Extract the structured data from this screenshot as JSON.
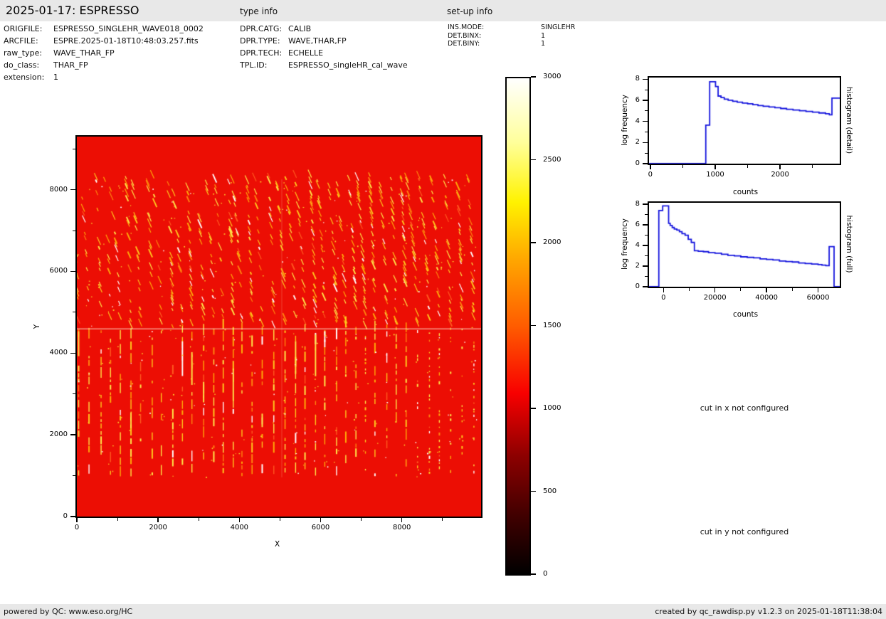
{
  "header": {
    "title": "2025-01-17: ESPRESSO",
    "type_info_label": "type info",
    "setup_info_label": "set-up info"
  },
  "file_info": {
    "rows": [
      {
        "label": "ORIGFILE:",
        "value": "ESPRESSO_SINGLEHR_WAVE018_0002"
      },
      {
        "label": "ARCFILE:",
        "value": "ESPRE.2025-01-18T10:48:03.257.fits"
      },
      {
        "label": "raw_type:",
        "value": "WAVE_THAR_FP"
      },
      {
        "label": "do_class:",
        "value": "THAR_FP"
      },
      {
        "label": "extension:",
        "value": "1"
      }
    ]
  },
  "type_info": {
    "rows": [
      {
        "label": "DPR.CATG:",
        "value": "CALIB"
      },
      {
        "label": "DPR.TYPE:",
        "value": "WAVE,THAR,FP"
      },
      {
        "label": "DPR.TECH:",
        "value": "ECHELLE"
      },
      {
        "label": "TPL.ID:",
        "value": "ESPRESSO_singleHR_cal_wave"
      }
    ]
  },
  "setup_info": {
    "rows": [
      {
        "label": "INS.MODE:",
        "value": "SINGLEHR"
      },
      {
        "label": "DET.BINX:",
        "value": "1"
      },
      {
        "label": "DET.BINY:",
        "value": "1"
      }
    ]
  },
  "notes": {
    "cut_x": "cut in x not configured",
    "cut_y": "cut in y not configured"
  },
  "footer": {
    "left": "powered by QC: www.eso.org/HC",
    "right": "created by qc_rawdisp.py v1.2.3 on 2025-01-18T11:38:04"
  },
  "chart_data": [
    {
      "name": "raw_image",
      "type": "heatmap",
      "title": "",
      "xlabel": "X",
      "ylabel": "Y",
      "xlim": [
        0,
        9950
      ],
      "ylim": [
        0,
        9300
      ],
      "xticks": [
        0,
        2000,
        4000,
        6000,
        8000
      ],
      "xticks_minor": [
        1000,
        3000,
        5000,
        7000,
        9000
      ],
      "yticks": [
        0,
        2000,
        4000,
        6000,
        8000
      ],
      "yticks_minor": [
        1000,
        3000,
        5000,
        7000,
        9000
      ],
      "colormap": "hot",
      "value_range": [
        0,
        3000
      ],
      "base_color": "#ec0e04",
      "description": "ESPRESSO raw WAVE,THAR,FP calibration frame: uniform red background near 1000 counts with ~40 curved vertical echelle-order stripes of bright yellow/white ThAr and FP emission features between Y~1000 and Y~8300; slanted dashed features in upper half, brighter continuous streaks in lower half; pale horizontal detector-gap line near Y~4650"
    },
    {
      "name": "colorbar",
      "type": "colorbar",
      "colormap": "hot",
      "vmin": 0,
      "vmax": 3000,
      "ticks": [
        0,
        500,
        1000,
        1500,
        2000,
        2500,
        3000
      ],
      "stops": [
        {
          "pos": 0.0,
          "color": "#000000"
        },
        {
          "pos": 0.12,
          "color": "#420000"
        },
        {
          "pos": 0.24,
          "color": "#8e0000"
        },
        {
          "pos": 0.365,
          "color": "#f80000"
        },
        {
          "pos": 0.5,
          "color": "#ff5c00"
        },
        {
          "pos": 0.635,
          "color": "#ffa700"
        },
        {
          "pos": 0.75,
          "color": "#fff200"
        },
        {
          "pos": 0.87,
          "color": "#ffff9a"
        },
        {
          "pos": 1.0,
          "color": "#ffffff"
        }
      ]
    },
    {
      "name": "histogram_detail",
      "type": "line",
      "title": "",
      "xlabel": "counts",
      "ylabel": "log frequency",
      "right_label": "histogram (detail)",
      "line_color": "#1515dd",
      "xlim": [
        -20,
        2920
      ],
      "ylim": [
        0,
        8.15
      ],
      "xticks": [
        0,
        1000,
        2000
      ],
      "xticks_minor": [
        500,
        1500,
        2500
      ],
      "yticks": [
        0,
        2,
        4,
        6,
        8
      ],
      "yticks_minor": [
        1,
        3,
        5,
        7
      ],
      "points": [
        [
          -20,
          0
        ],
        [
          855,
          0
        ],
        [
          855,
          3.65
        ],
        [
          915,
          3.65
        ],
        [
          915,
          7.75
        ],
        [
          1005,
          7.75
        ],
        [
          1005,
          7.3
        ],
        [
          1045,
          7.3
        ],
        [
          1045,
          6.4
        ],
        [
          1090,
          6.4
        ],
        [
          1090,
          6.25
        ],
        [
          1140,
          6.25
        ],
        [
          1140,
          6.1
        ],
        [
          1200,
          6.1
        ],
        [
          1200,
          6.0
        ],
        [
          1270,
          6.0
        ],
        [
          1270,
          5.9
        ],
        [
          1340,
          5.9
        ],
        [
          1340,
          5.82
        ],
        [
          1420,
          5.82
        ],
        [
          1420,
          5.74
        ],
        [
          1500,
          5.74
        ],
        [
          1500,
          5.66
        ],
        [
          1580,
          5.66
        ],
        [
          1580,
          5.58
        ],
        [
          1660,
          5.58
        ],
        [
          1660,
          5.5
        ],
        [
          1740,
          5.5
        ],
        [
          1740,
          5.43
        ],
        [
          1830,
          5.43
        ],
        [
          1830,
          5.36
        ],
        [
          1920,
          5.36
        ],
        [
          1920,
          5.29
        ],
        [
          2010,
          5.29
        ],
        [
          2010,
          5.22
        ],
        [
          2100,
          5.22
        ],
        [
          2100,
          5.15
        ],
        [
          2200,
          5.15
        ],
        [
          2200,
          5.08
        ],
        [
          2300,
          5.08
        ],
        [
          2300,
          5.01
        ],
        [
          2400,
          5.01
        ],
        [
          2400,
          4.94
        ],
        [
          2500,
          4.94
        ],
        [
          2500,
          4.87
        ],
        [
          2600,
          4.87
        ],
        [
          2600,
          4.8
        ],
        [
          2700,
          4.8
        ],
        [
          2700,
          4.72
        ],
        [
          2760,
          4.72
        ],
        [
          2760,
          4.62
        ],
        [
          2800,
          4.62
        ],
        [
          2800,
          6.2
        ],
        [
          2920,
          6.2
        ]
      ]
    },
    {
      "name": "histogram_full",
      "type": "line",
      "title": "",
      "xlabel": "counts",
      "ylabel": "log frequency",
      "right_label": "histogram (full)",
      "line_color": "#1515dd",
      "xlim": [
        -5600,
        68400
      ],
      "ylim": [
        0,
        8.15
      ],
      "xticks": [
        0,
        20000,
        40000,
        60000
      ],
      "xticks_minor": [
        10000,
        30000,
        50000
      ],
      "yticks": [
        0,
        2,
        4,
        6,
        8
      ],
      "yticks_minor": [
        1,
        3,
        5,
        7
      ],
      "points": [
        [
          -5600,
          0
        ],
        [
          -1800,
          0
        ],
        [
          -1800,
          7.4
        ],
        [
          -300,
          7.4
        ],
        [
          -300,
          7.85
        ],
        [
          2000,
          7.85
        ],
        [
          2000,
          6.15
        ],
        [
          2600,
          6.15
        ],
        [
          2600,
          5.95
        ],
        [
          3400,
          5.95
        ],
        [
          3400,
          5.75
        ],
        [
          4200,
          5.75
        ],
        [
          4200,
          5.6
        ],
        [
          5200,
          5.6
        ],
        [
          5200,
          5.5
        ],
        [
          6200,
          5.5
        ],
        [
          6200,
          5.35
        ],
        [
          7200,
          5.35
        ],
        [
          7200,
          5.15
        ],
        [
          8400,
          5.15
        ],
        [
          8400,
          5.0
        ],
        [
          9600,
          5.0
        ],
        [
          9600,
          4.6
        ],
        [
          10800,
          4.6
        ],
        [
          10800,
          4.3
        ],
        [
          12000,
          4.3
        ],
        [
          12000,
          3.5
        ],
        [
          13500,
          3.5
        ],
        [
          13500,
          3.45
        ],
        [
          15500,
          3.45
        ],
        [
          15500,
          3.4
        ],
        [
          17500,
          3.4
        ],
        [
          17500,
          3.3
        ],
        [
          20000,
          3.3
        ],
        [
          20000,
          3.25
        ],
        [
          22500,
          3.25
        ],
        [
          22500,
          3.15
        ],
        [
          25000,
          3.15
        ],
        [
          25000,
          3.05
        ],
        [
          27500,
          3.05
        ],
        [
          27500,
          3.0
        ],
        [
          30000,
          3.0
        ],
        [
          30000,
          2.9
        ],
        [
          32500,
          2.9
        ],
        [
          32500,
          2.85
        ],
        [
          35000,
          2.85
        ],
        [
          35000,
          2.8
        ],
        [
          37500,
          2.8
        ],
        [
          37500,
          2.7
        ],
        [
          40000,
          2.7
        ],
        [
          40000,
          2.65
        ],
        [
          42500,
          2.65
        ],
        [
          42500,
          2.6
        ],
        [
          45000,
          2.6
        ],
        [
          45000,
          2.5
        ],
        [
          47500,
          2.5
        ],
        [
          47500,
          2.45
        ],
        [
          50000,
          2.45
        ],
        [
          50000,
          2.4
        ],
        [
          52500,
          2.4
        ],
        [
          52500,
          2.3
        ],
        [
          55000,
          2.3
        ],
        [
          55000,
          2.25
        ],
        [
          57500,
          2.25
        ],
        [
          57500,
          2.2
        ],
        [
          60000,
          2.2
        ],
        [
          60000,
          2.15
        ],
        [
          61500,
          2.15
        ],
        [
          61500,
          2.1
        ],
        [
          63000,
          2.1
        ],
        [
          63000,
          2.05
        ],
        [
          64300,
          2.05
        ],
        [
          64300,
          3.9
        ],
        [
          66200,
          3.9
        ],
        [
          66200,
          0
        ],
        [
          68400,
          0
        ]
      ]
    }
  ]
}
